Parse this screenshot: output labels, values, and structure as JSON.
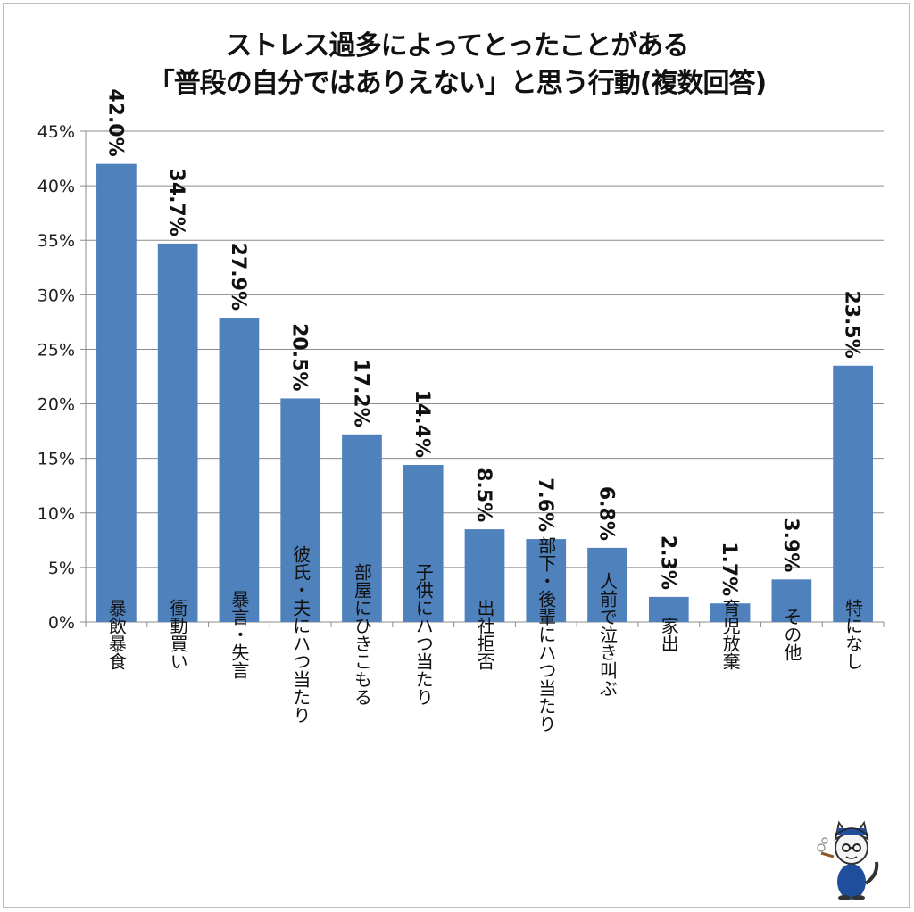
{
  "chart_data": {
    "type": "bar",
    "title": "ストレス過多によってとったことがある",
    "subtitle": "「普段の自分ではありえない」と思う行動(複数回答)",
    "categories": [
      "暴飲暴食",
      "衝動買い",
      "暴言・失言",
      "彼氏・夫にハつ当たり",
      "部屋にひきこもる",
      "子供にハつ当たり",
      "出社拒否",
      "部下・後輩にハつ当たり",
      "人前で泣き叫ぶ",
      "家出",
      "育児放棄",
      "その他",
      "特になし"
    ],
    "values": [
      42.0,
      34.7,
      27.9,
      20.5,
      17.2,
      14.4,
      8.5,
      7.6,
      6.8,
      2.3,
      1.7,
      3.9,
      23.5
    ],
    "data_labels": [
      "42.0%",
      "34.7%",
      "27.9%",
      "20.5%",
      "17.2%",
      "14.4%",
      "8.5%",
      "7.6%",
      "6.8%",
      "2.3%",
      "1.7%",
      "3.9%",
      "23.5%"
    ],
    "yticks": [
      "0%",
      "5%",
      "10%",
      "15%",
      "20%",
      "25%",
      "30%",
      "35%",
      "40%",
      "45%"
    ],
    "ylim": [
      0,
      45
    ],
    "grid": true,
    "bar_color": "#4f81bd",
    "xlabel": "",
    "ylabel": ""
  }
}
